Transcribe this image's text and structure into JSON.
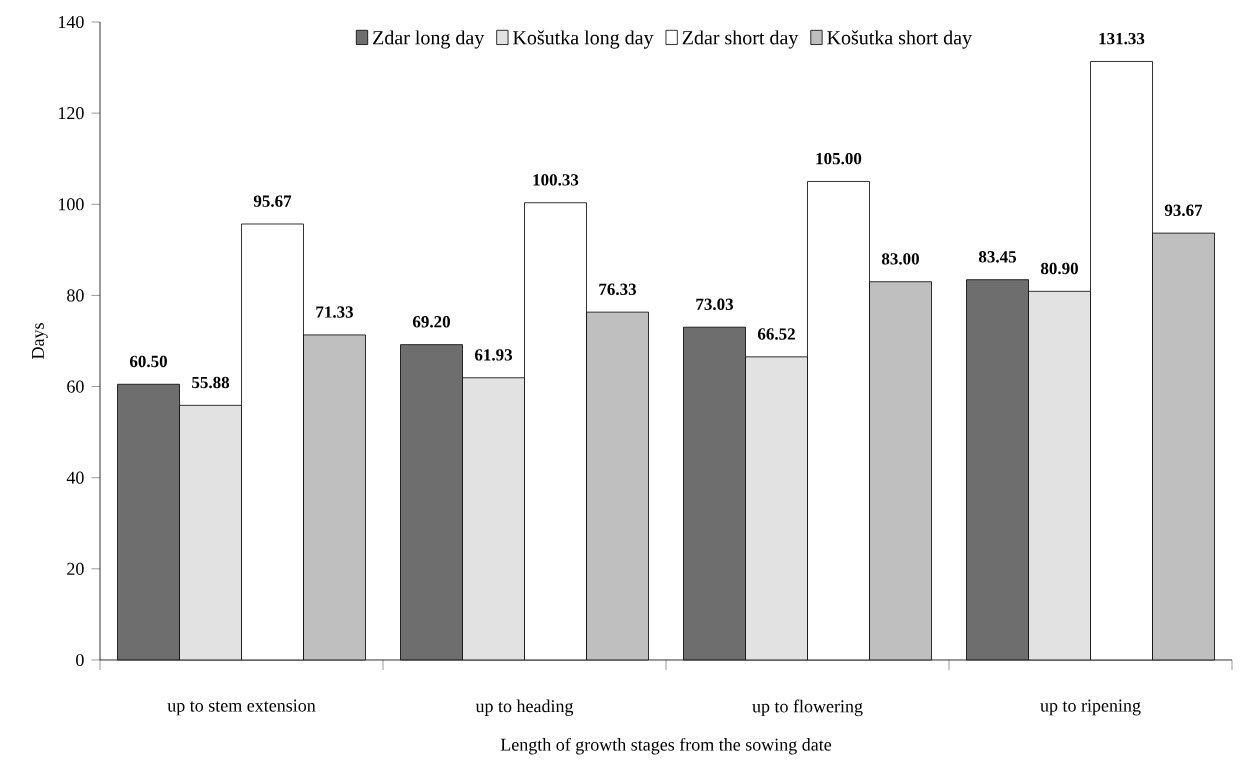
{
  "chart_data": {
    "type": "bar",
    "xlabel": "Length of growth stages from the sowing date",
    "ylabel": "Days",
    "categories": [
      "up to stem extension",
      "up to heading",
      "up to flowering",
      "up to ripening"
    ],
    "series": [
      {
        "name": "Zdar long day",
        "color": "#6e6e6e",
        "values": [
          60.5,
          69.2,
          73.03,
          83.45
        ],
        "value_labels": [
          "60.50",
          "69.20",
          "73.03",
          "83.45"
        ]
      },
      {
        "name": "Košutka long day",
        "color": "#e2e2e2",
        "values": [
          55.88,
          61.93,
          66.52,
          80.9
        ],
        "value_labels": [
          "55.88",
          "61.93",
          "66.52",
          "80.90"
        ]
      },
      {
        "name": "Zdar short day",
        "color": "#ffffff",
        "values": [
          95.67,
          100.33,
          105.0,
          131.33
        ],
        "value_labels": [
          "95.67",
          "100.33",
          "105.00",
          "131.33"
        ]
      },
      {
        "name": "Košutka short day",
        "color": "#bfbfbf",
        "values": [
          71.33,
          76.33,
          83.0,
          93.67
        ],
        "value_labels": [
          "71.33",
          "76.33",
          "83.00",
          "93.67"
        ]
      }
    ],
    "ylim": [
      0,
      140
    ],
    "yticks": [
      0,
      20,
      40,
      60,
      80,
      100,
      120,
      140
    ],
    "legend": "top",
    "grid": false
  }
}
